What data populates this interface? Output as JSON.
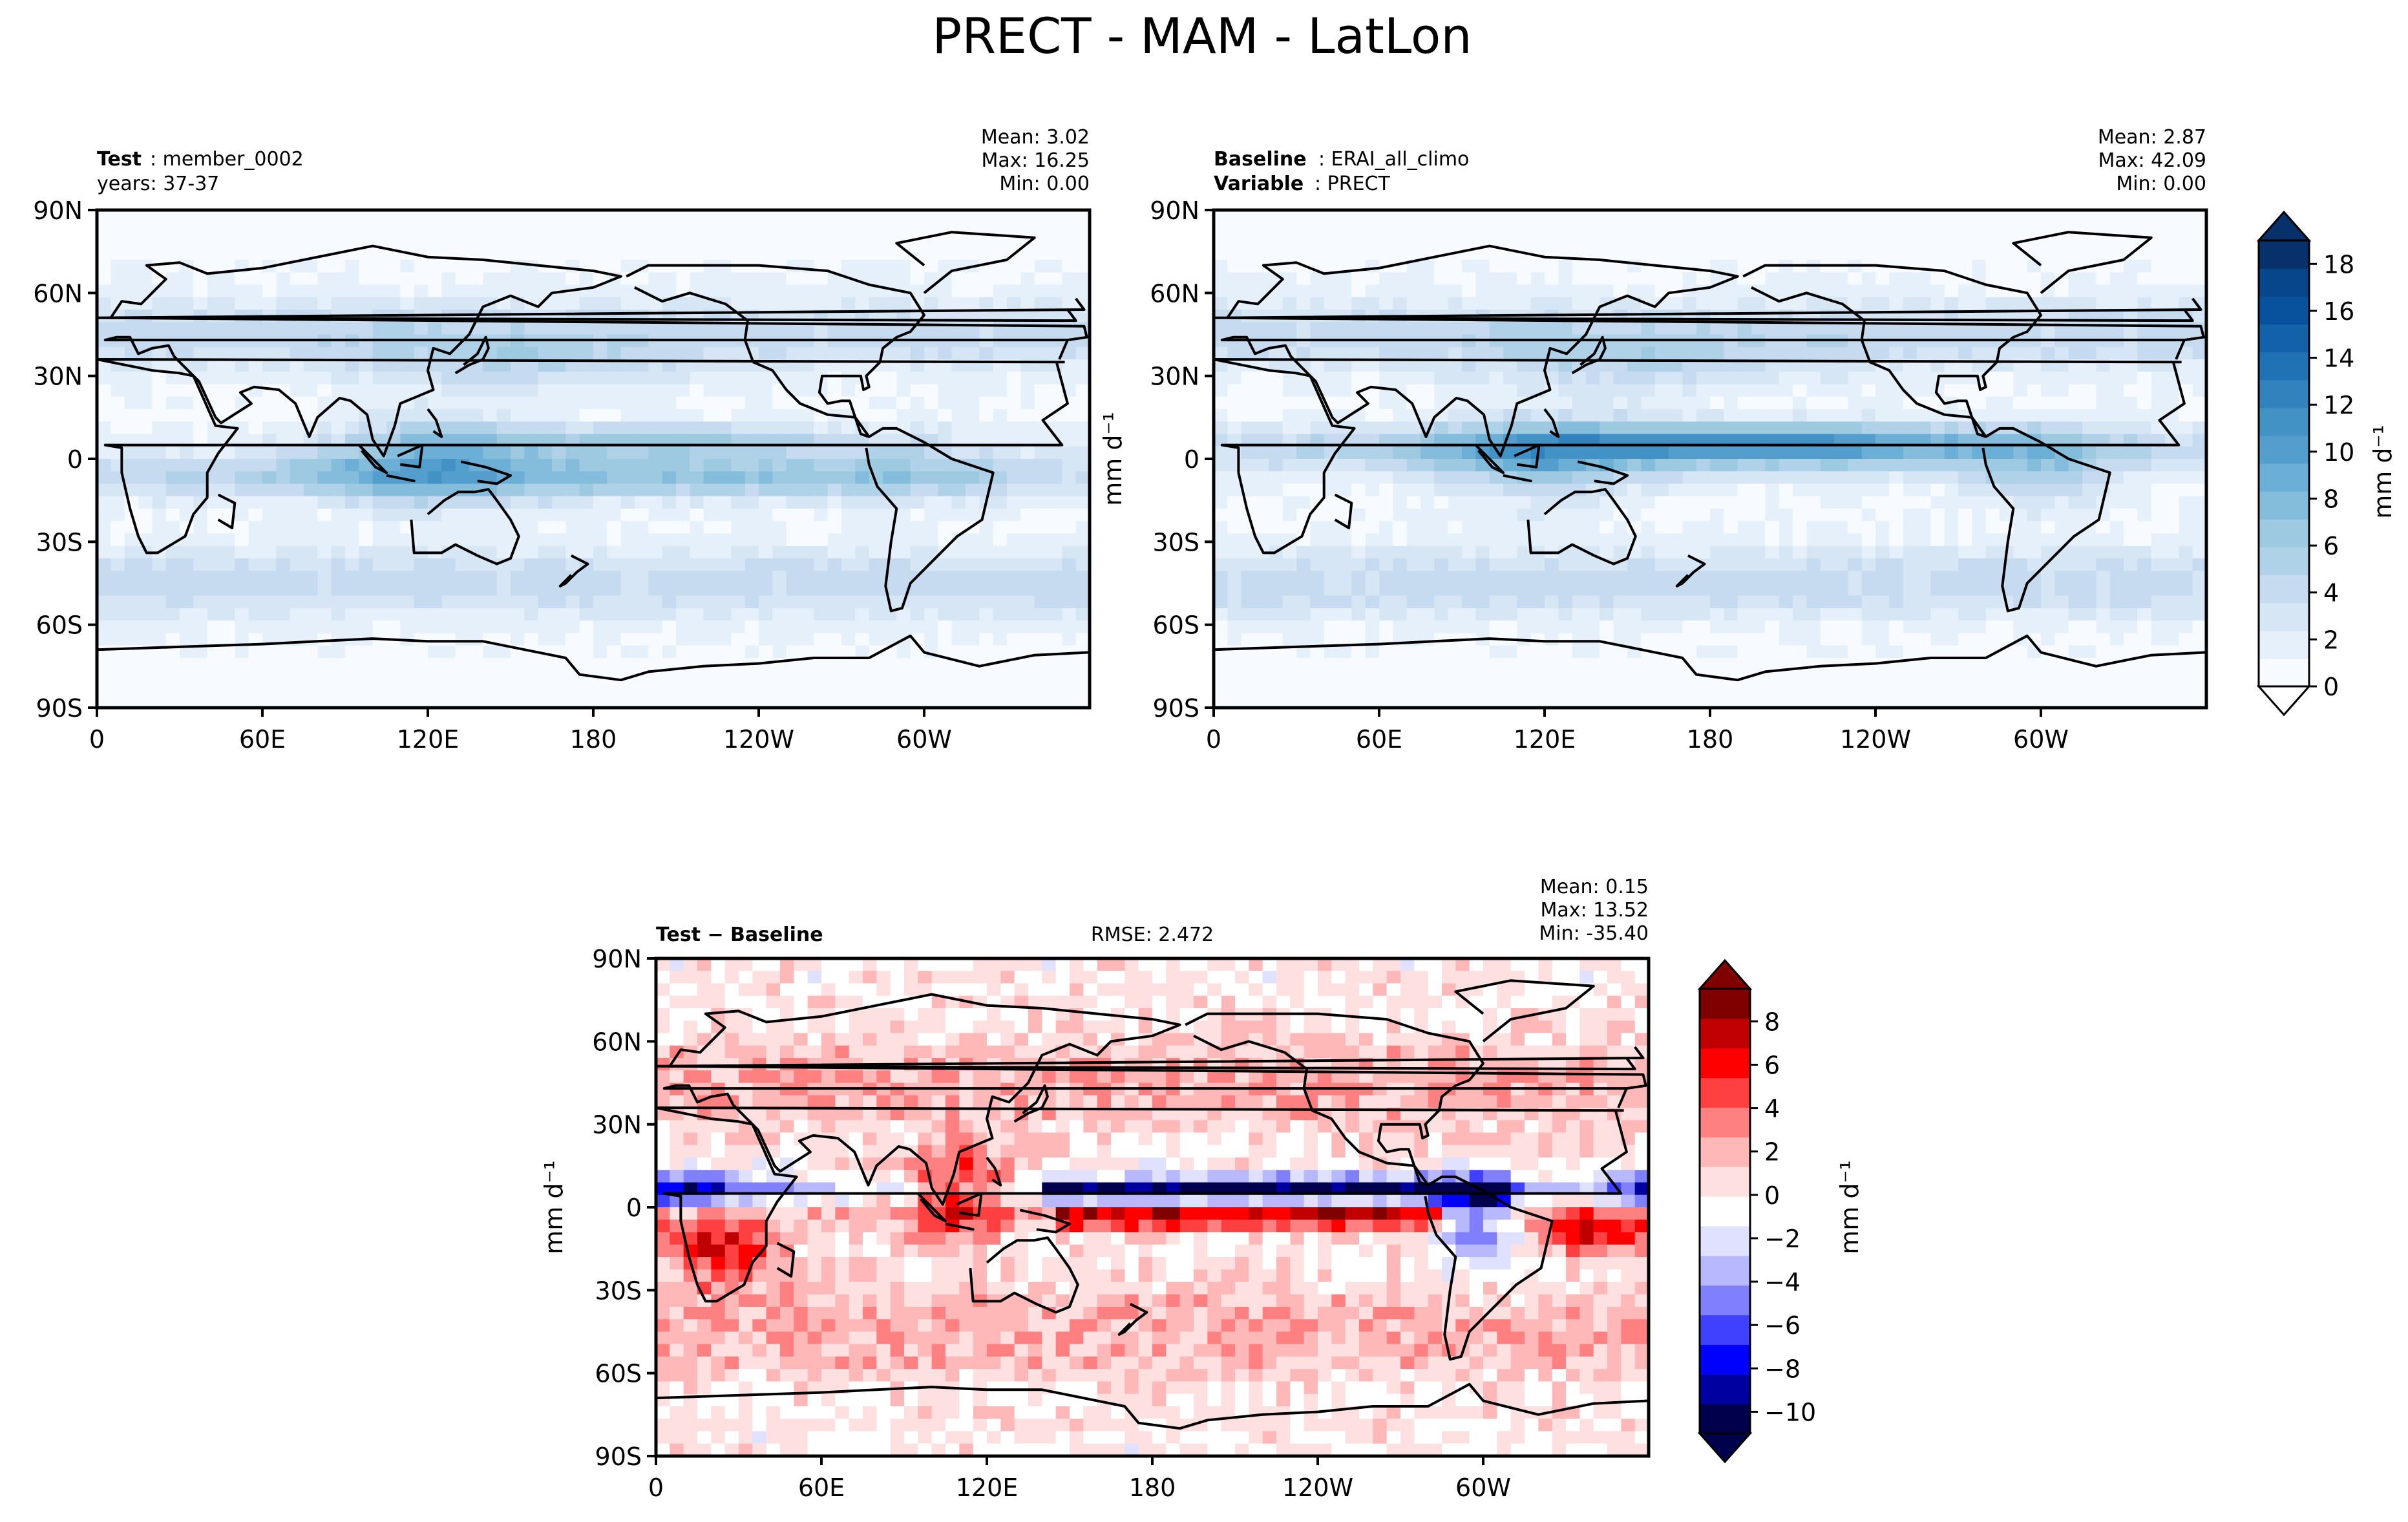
{
  "figure": {
    "title": "PRECT - MAM - LatLon"
  },
  "colors": {
    "blues": [
      "#f7fbff",
      "#e6f0fa",
      "#d6e6f4",
      "#c6dbef",
      "#b0d2e8",
      "#9ecae1",
      "#84bcdc",
      "#6baed6",
      "#539ecd",
      "#4292c6",
      "#3282be",
      "#2171b5",
      "#1361a9",
      "#08519c",
      "#08468b",
      "#08306b"
    ],
    "diverging": [
      "#00004c",
      "#0000a0",
      "#0000ff",
      "#4040ff",
      "#8080ff",
      "#b8b8ff",
      "#e0e0ff",
      "#ffffff",
      "#ffe0e0",
      "#ffb8b8",
      "#ff8080",
      "#ff4040",
      "#ff0000",
      "#c00000",
      "#800000"
    ],
    "coast": "#000000"
  },
  "panels": {
    "test": {
      "label_bold": "Test",
      "label_rest": ": member_0002",
      "line2": "years: 37-37",
      "mean": "Mean:  3.02",
      "max": "Max: 16.25",
      "min": "Min:  0.00"
    },
    "baseline": {
      "label_bold": "Baseline",
      "label_rest": ": ERAI_all_climo",
      "line2_bold": "Variable",
      "line2_rest": ": PRECT",
      "mean": "Mean:  2.87",
      "max": "Max: 42.09",
      "min": "Min:  0.00"
    },
    "diff": {
      "label": "Test − Baseline",
      "rmse": "RMSE: 2.472",
      "mean": "Mean:  0.15",
      "max": "Max: 13.52",
      "min": "Min: -35.40"
    }
  },
  "chart_data": [
    {
      "type": "heatmap",
      "name": "test",
      "title": "Test: member_0002, years: 37-37",
      "xlabel": "",
      "ylabel": "",
      "x_ticks": [
        "0",
        "60E",
        "120E",
        "180",
        "120W",
        "60W"
      ],
      "y_ticks": [
        "90N",
        "60N",
        "30N",
        "0",
        "30S",
        "60S",
        "90S"
      ],
      "xlim": [
        0,
        360
      ],
      "ylim": [
        -90,
        90
      ],
      "colorbar": {
        "label": "mm d⁻¹",
        "ticks": [
          "0",
          "2",
          "4",
          "6",
          "8",
          "10",
          "12",
          "14",
          "16",
          "18"
        ],
        "range": [
          0,
          19
        ]
      },
      "stats": {
        "mean": 3.02,
        "max": 16.25,
        "min": 0.0
      }
    },
    {
      "type": "heatmap",
      "name": "baseline",
      "title": "Baseline: ERAI_all_climo, Variable: PRECT",
      "xlabel": "",
      "ylabel": "mm d⁻¹",
      "x_ticks": [
        "0",
        "60E",
        "120E",
        "180",
        "120W",
        "60W"
      ],
      "y_ticks": [
        "90N",
        "60N",
        "30N",
        "0",
        "30S",
        "60S",
        "90S"
      ],
      "xlim": [
        0,
        360
      ],
      "ylim": [
        -90,
        90
      ],
      "colorbar": {
        "label": "mm d⁻¹",
        "ticks": [
          "0",
          "2",
          "4",
          "6",
          "8",
          "10",
          "12",
          "14",
          "16",
          "18"
        ],
        "range": [
          0,
          19
        ]
      },
      "stats": {
        "mean": 2.87,
        "max": 42.09,
        "min": 0.0
      }
    },
    {
      "type": "heatmap",
      "name": "difference",
      "title": "Test − Baseline",
      "xlabel": "",
      "ylabel": "mm d⁻¹",
      "x_ticks": [
        "0",
        "60E",
        "120E",
        "180",
        "120W",
        "60W"
      ],
      "y_ticks": [
        "90N",
        "60N",
        "30N",
        "0",
        "30S",
        "60S",
        "90S"
      ],
      "xlim": [
        0,
        360
      ],
      "ylim": [
        -90,
        90
      ],
      "colorbar": {
        "label": "mm d⁻¹",
        "ticks": [
          "−10",
          "−8",
          "−6",
          "−4",
          "−2",
          "0",
          "2",
          "4",
          "6",
          "8"
        ],
        "range": [
          -11,
          9.5
        ]
      },
      "stats": {
        "mean": 0.15,
        "max": 13.52,
        "min": -35.4,
        "rmse": 2.472
      }
    }
  ],
  "tick_labels": {
    "x": [
      "0",
      "60E",
      "120E",
      "180",
      "120W",
      "60W"
    ],
    "y": [
      "90N",
      "60N",
      "30N",
      "0",
      "30S",
      "60S",
      "90S"
    ]
  },
  "colorbars": {
    "precip": {
      "label": "mm d⁻¹",
      "ticks": [
        "0",
        "2",
        "4",
        "6",
        "8",
        "10",
        "12",
        "14",
        "16",
        "18"
      ]
    },
    "diff": {
      "label": "mm d⁻¹",
      "ticks": [
        "−10",
        "−8",
        "−6",
        "−4",
        "−2",
        "0",
        "2",
        "4",
        "6",
        "8"
      ]
    }
  },
  "axis_units": "mm d⁻¹"
}
